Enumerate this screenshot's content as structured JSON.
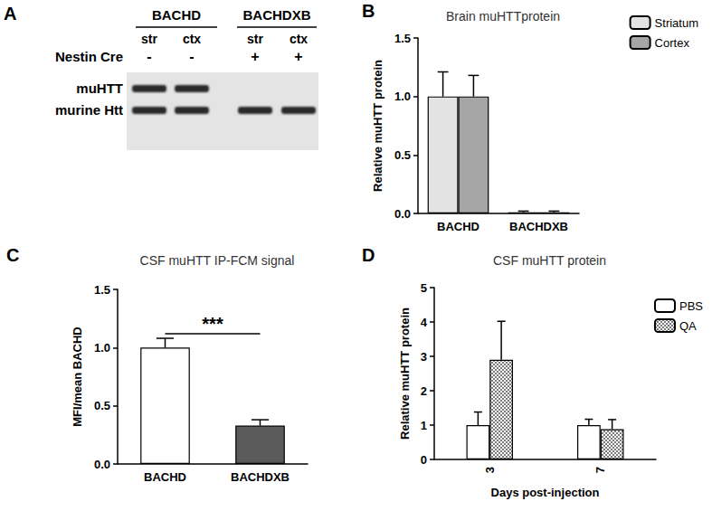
{
  "panel_a": {
    "panel": "A",
    "row_label": "Nestin Cre",
    "band_labels": [
      "muHTT",
      "murine Htt"
    ],
    "groups": [
      {
        "label": "BACHD",
        "lanes": [
          {
            "region": "str",
            "nestin_cre": "-",
            "bands": [
              "muHTT",
              "murine Htt"
            ]
          },
          {
            "region": "ctx",
            "nestin_cre": "-",
            "bands": [
              "muHTT",
              "murine Htt"
            ]
          }
        ]
      },
      {
        "label": "BACHDXB",
        "lanes": [
          {
            "region": "str",
            "nestin_cre": "+",
            "bands": [
              "murine Htt"
            ]
          },
          {
            "region": "ctx",
            "nestin_cre": "+",
            "bands": [
              "murine Htt"
            ]
          }
        ]
      }
    ]
  },
  "chart_data": [
    {
      "panel": "B",
      "type": "bar",
      "title": "Brain muHTTprotein",
      "y_label": "Relative muHTT protein",
      "categories": [
        "BACHD",
        "BACHDXB"
      ],
      "series": [
        {
          "name": "Striatum",
          "color": "#e3e3e3",
          "values": [
            1.0,
            0.01
          ],
          "errors": [
            0.21,
            0.01
          ]
        },
        {
          "name": "Cortex",
          "color": "#a6a6a6",
          "values": [
            1.0,
            0.01
          ],
          "errors": [
            0.18,
            0.01
          ]
        }
      ],
      "ylim": [
        0,
        1.5
      ],
      "yticks": [
        {
          "value": 0,
          "label": "0.0"
        },
        {
          "value": 0.5,
          "label": "0.5"
        },
        {
          "value": 1,
          "label": "1.0"
        },
        {
          "value": 1.5,
          "label": "1.5"
        }
      ],
      "legend": "top-right",
      "grid": false
    },
    {
      "panel": "C",
      "type": "bar",
      "title": "CSF muHTT IP-FCM signal",
      "y_label": "MFI/mean BACHD",
      "categories": [
        "BACHD",
        "BACHDXB"
      ],
      "values": [
        1.0,
        0.33
      ],
      "errors": [
        0.08,
        0.05
      ],
      "colors": [
        "#ffffff",
        "#5a5a5a"
      ],
      "annotations": [
        {
          "text": "***",
          "from": "BACHD",
          "to": "BACHDXB",
          "y": 1.12
        }
      ],
      "ylim": [
        0,
        1.5
      ],
      "yticks": [
        {
          "value": 0,
          "label": "0.0"
        },
        {
          "value": 0.5,
          "label": "0.5"
        },
        {
          "value": 1,
          "label": "1.0"
        },
        {
          "value": 1.5,
          "label": "1.5"
        }
      ],
      "grid": false
    },
    {
      "panel": "D",
      "type": "bar",
      "title": "CSF muHTT protein",
      "y_label": "Relative muHTT protein",
      "x_label": "Days post-injection",
      "categories": [
        "3",
        "7"
      ],
      "series": [
        {
          "name": "PBS",
          "color": "#ffffff",
          "values": [
            1.0,
            1.0
          ],
          "errors": [
            0.38,
            0.17
          ]
        },
        {
          "name": "QA",
          "color": "#7a7a7a",
          "marker": "checkered",
          "values": [
            2.9,
            0.88
          ],
          "errors": [
            1.12,
            0.28
          ]
        }
      ],
      "ylim": [
        0,
        5
      ],
      "yticks": [
        0,
        1,
        2,
        3,
        4,
        5
      ],
      "legend": "top-right",
      "grid": false
    }
  ]
}
